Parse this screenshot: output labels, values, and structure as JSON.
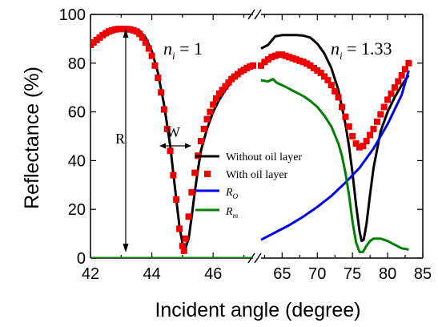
{
  "chart_data": {
    "type": "line",
    "xlabel": "Incident angle (degree)",
    "ylabel": "Reflectance (%)",
    "ylim": [
      0,
      100
    ],
    "grid": false,
    "y_ticks": [
      "0",
      "20",
      "40",
      "60",
      "80",
      "100"
    ],
    "panels": [
      {
        "annotation_n": "n",
        "annotation_i": "i",
        "annotation_value": " = 1",
        "xlim": [
          42,
          47.3
        ],
        "x_ticks": [
          "42",
          "44",
          "46"
        ],
        "series": [
          {
            "name": "Without oil layer",
            "style": "line",
            "color": "#000000",
            "x": [
              42.0,
              42.3,
              42.6,
              42.9,
              43.2,
              43.4,
              43.6,
              43.8,
              44.0,
              44.2,
              44.4,
              44.6,
              44.8,
              44.9,
              45.0,
              45.1,
              45.2,
              45.3,
              45.4,
              45.5,
              45.6,
              45.8,
              46.0,
              46.2,
              46.4,
              46.6,
              46.8,
              47.0,
              47.3
            ],
            "y": [
              88,
              90,
              92,
              93.4,
              94,
              94,
              93.2,
              90.5,
              85,
              76,
              63,
              46,
              24,
              13,
              6,
              4,
              8,
              17,
              27,
              36,
              44,
              53,
              60,
              65,
              69,
              72.5,
              75,
              77,
              79
            ]
          },
          {
            "name": "With oil layer",
            "style": "markers",
            "color": "#ee0000",
            "x": [
              42.0,
              42.1,
              42.2,
              42.3,
              42.4,
              42.5,
              42.6,
              42.7,
              42.8,
              42.9,
              43.0,
              43.1,
              43.2,
              43.3,
              43.4,
              43.5,
              43.6,
              43.7,
              43.8,
              43.9,
              44.0,
              44.1,
              44.2,
              44.3,
              44.4,
              44.5,
              44.6,
              44.7,
              44.8,
              44.9,
              45.0,
              45.05,
              45.1,
              45.2,
              45.3,
              45.4,
              45.5,
              45.6,
              45.7,
              45.8,
              45.9,
              46.0,
              46.1,
              46.2,
              46.3,
              46.4,
              46.5,
              46.6,
              46.7,
              46.8,
              46.9,
              47.0,
              47.1,
              47.2,
              47.3
            ],
            "y": [
              87.5,
              88.5,
              89.5,
              90.5,
              91.5,
              92.3,
              93,
              93.5,
              93.8,
              94,
              94,
              94,
              94,
              93.8,
              93.5,
              93,
              92,
              90.5,
              88.5,
              86,
              83,
              79,
              74,
              68,
              61,
              53,
              44,
              34,
              24,
              12,
              5,
              3,
              8,
              17,
              27,
              35,
              42,
              48,
              53,
              57,
              60,
              63,
              65.5,
              67.5,
              69,
              70.5,
              72,
              73.5,
              74.5,
              75.5,
              76.5,
              77.2,
              78,
              78.6,
              79
            ]
          },
          {
            "name": "R_O",
            "style": "line",
            "color": "#0000ee",
            "x": [
              42,
              47.3
            ],
            "y": [
              0,
              0
            ]
          },
          {
            "name": "R_m",
            "style": "line",
            "color": "#008000",
            "x": [
              42,
              47.3
            ],
            "y": [
              0,
              0
            ]
          }
        ],
        "dimension_labels": {
          "R": "R",
          "W": "W"
        }
      },
      {
        "annotation_n": "n",
        "annotation_i": "i",
        "annotation_value": " = 1.33",
        "xlim": [
          62,
          85
        ],
        "x_ticks": [
          "65",
          "70",
          "75",
          "80",
          "85"
        ],
        "series": [
          {
            "name": "Without oil layer",
            "style": "line",
            "color": "#000000",
            "x": [
              62,
              63,
              64,
              65,
              66,
              67,
              68,
              69,
              70,
              71,
              72,
              73,
              74,
              74.5,
              75,
              75.5,
              76,
              76.3,
              76.6,
              77,
              77.5,
              78,
              79,
              80,
              81,
              82,
              83
            ],
            "y": [
              86,
              87.5,
              91,
              91.5,
              91.5,
              91.5,
              91.3,
              90.5,
              88,
              84,
              78,
              69,
              55,
              46,
              35,
              22,
              11,
              7,
              7.5,
              14,
              26,
              37,
              52,
              60,
              66,
              71,
              75
            ]
          },
          {
            "name": "With oil layer",
            "style": "markers",
            "color": "#ee0000",
            "x": [
              62,
              62.5,
              63,
              63.5,
              64,
              64.5,
              65,
              65.5,
              66,
              66.5,
              67,
              67.5,
              68,
              68.5,
              69,
              69.5,
              70,
              70.5,
              71,
              71.5,
              72,
              72.5,
              73,
              73.5,
              74,
              74.5,
              75,
              75.5,
              76,
              76.5,
              77,
              77.5,
              78,
              78.5,
              79,
              79.5,
              80,
              80.5,
              81,
              81.5,
              82,
              82.5,
              83
            ],
            "y": [
              79,
              80.5,
              81.5,
              82.5,
              83,
              83.5,
              83.5,
              83,
              82.5,
              82,
              81.5,
              81,
              80.5,
              79.8,
              79,
              78,
              77,
              76,
              74.5,
              73,
              71,
              68.5,
              66,
              62,
              58,
              54,
              50,
              47,
              45.5,
              46,
              48,
              50.5,
              53,
              56,
              59,
              62,
              65,
              67.5,
              70,
              72.5,
              75,
              77.5,
              80
            ]
          },
          {
            "name": "R_O",
            "style": "line",
            "color": "#0000ee",
            "x": [
              62,
              64,
              66,
              68,
              70,
              72,
              74,
              76,
              78,
              80,
              82,
              83
            ],
            "y": [
              7.5,
              10.5,
              13.5,
              17,
              21,
              25.5,
              31,
              37,
              45,
              55,
              67,
              77
            ]
          },
          {
            "name": "R_m",
            "style": "line",
            "color": "#008000",
            "x": [
              62,
              63,
              63.7,
              64.2,
              65,
              66,
              67,
              68,
              69,
              70,
              71,
              72,
              73,
              73.5,
              74,
              74.5,
              75,
              75.5,
              76,
              76.5,
              77,
              77.5,
              78,
              79,
              80,
              81,
              82,
              83
            ],
            "y": [
              73,
              72.5,
              73.5,
              72,
              71,
              69.5,
              68,
              66.5,
              64.5,
              62,
              58.5,
              54,
              47,
              42,
              35,
              26,
              15,
              6.5,
              2.5,
              2.5,
              5,
              7,
              8,
              8,
              7,
              5.5,
              4,
              3.5
            ]
          }
        ]
      }
    ],
    "legend": {
      "placement": "center-right of left panel",
      "entries": [
        {
          "label": "Without oil layer",
          "color": "#000000",
          "marker": "line"
        },
        {
          "label": "With oil layer",
          "color": "#ee0000",
          "marker": "square"
        },
        {
          "main": "R",
          "sub": "O",
          "color": "#0000ee",
          "marker": "line"
        },
        {
          "main": "R",
          "sub": "m",
          "color": "#008000",
          "marker": "line"
        }
      ]
    }
  }
}
